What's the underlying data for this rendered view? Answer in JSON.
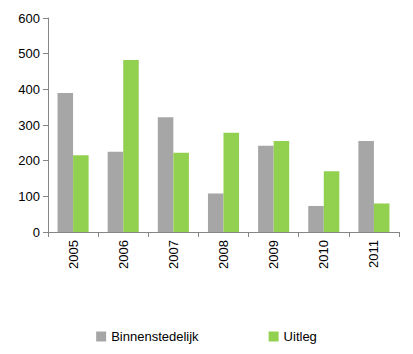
{
  "chart_data": {
    "type": "bar",
    "categories": [
      "2005",
      "2006",
      "2007",
      "2008",
      "2009",
      "2010",
      "2011"
    ],
    "series": [
      {
        "name": "Binnenstedelijk",
        "color": "#a6a6a6",
        "values": [
          390,
          225,
          322,
          108,
          242,
          73,
          255
        ]
      },
      {
        "name": "Uitleg",
        "color": "#92d050",
        "values": [
          215,
          482,
          222,
          278,
          255,
          170,
          80
        ]
      }
    ],
    "ylim": [
      0,
      600
    ],
    "yticks": [
      0,
      100,
      200,
      300,
      400,
      500,
      600
    ],
    "grid": false,
    "legend": "bottom"
  }
}
